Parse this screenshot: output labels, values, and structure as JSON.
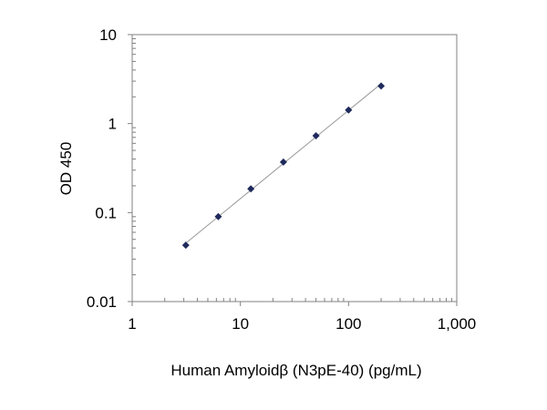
{
  "chart_data": {
    "type": "scatter",
    "title": "",
    "xlabel": "Human Amyloidβ (N3pE-40) (pg/mL)",
    "ylabel": "OD 450",
    "x_scale": "log",
    "y_scale": "log",
    "xlim": [
      1,
      1000
    ],
    "ylim": [
      0.01,
      10
    ],
    "x_tick_labels": [
      "1",
      "10",
      "100",
      "1,000"
    ],
    "y_tick_labels": [
      "10",
      "1",
      "0.1",
      "0.01"
    ],
    "grid": false,
    "legend": "none",
    "marker": "diamond",
    "marker_color": "#1f2a5c",
    "fit_line_color": "#9a9a9a",
    "series": [
      {
        "x": [
          3.13,
          6.25,
          12.5,
          25,
          50,
          100,
          200
        ],
        "y": [
          0.043,
          0.09,
          0.185,
          0.37,
          0.73,
          1.42,
          2.65
        ]
      }
    ]
  }
}
